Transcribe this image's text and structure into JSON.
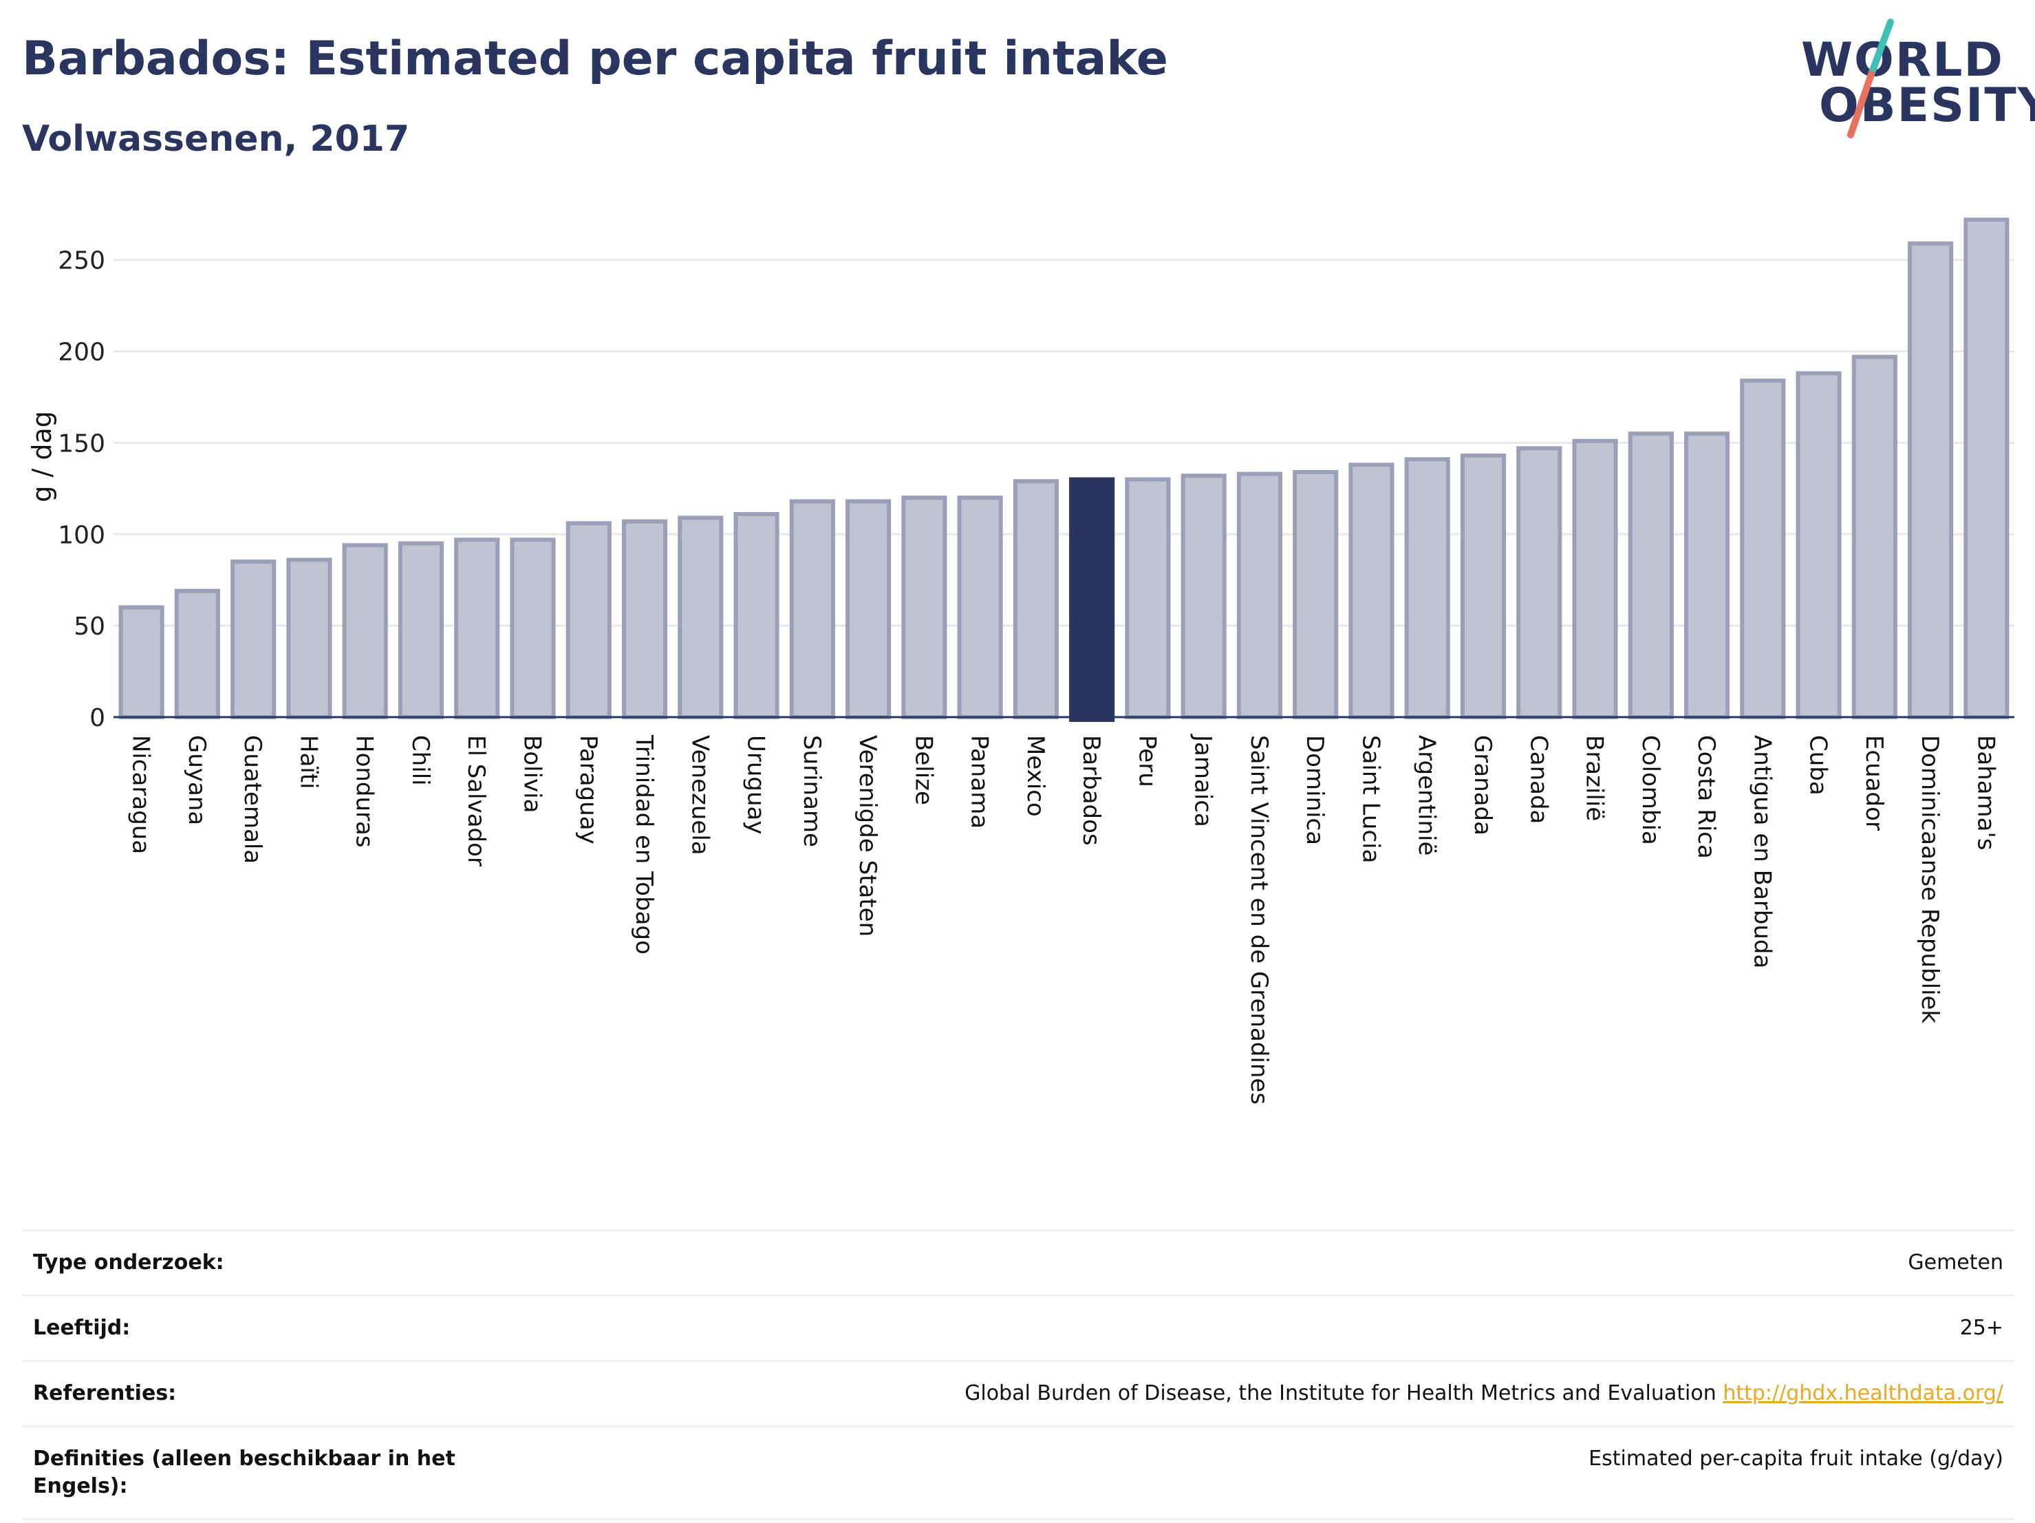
{
  "header": {
    "title": "Barbados: Estimated per capita fruit intake",
    "subtitle": "Volwassenen, 2017"
  },
  "logo": {
    "line1": "WORLD",
    "line2": "OBESITY"
  },
  "chart_data": {
    "type": "bar",
    "ylabel": "g / dag",
    "ylim": [
      0,
      280
    ],
    "yticks": [
      0,
      50,
      100,
      150,
      200,
      250
    ],
    "grid": true,
    "highlight": "Barbados",
    "colors": {
      "bar": "#c0c4d2",
      "bar_edge": "#9aa0b8",
      "highlight": "#2a3560",
      "grid": "#e6e8ee",
      "axis": "#2a3560"
    },
    "categories": [
      "Nicaragua",
      "Guyana",
      "Guatemala",
      "Haïti",
      "Honduras",
      "Chili",
      "El Salvador",
      "Bolivia",
      "Paraguay",
      "Trinidad en Tobago",
      "Venezuela",
      "Uruguay",
      "Suriname",
      "Verenigde Staten",
      "Belize",
      "Panama",
      "Mexico",
      "Barbados",
      "Peru",
      "Jamaica",
      "Saint Vincent en de Grenadines",
      "Dominica",
      "Saint Lucia",
      "Argentinië",
      "Granada",
      "Canada",
      "Brazilië",
      "Colombia",
      "Costa Rica",
      "Antigua en Barbuda",
      "Cuba",
      "Ecuador",
      "Dominicaanse Republiek",
      "Bahama's"
    ],
    "values": [
      60,
      69,
      85,
      86,
      94,
      95,
      97,
      97,
      106,
      107,
      109,
      111,
      118,
      118,
      120,
      120,
      129,
      130,
      130,
      132,
      133,
      134,
      138,
      141,
      143,
      147,
      151,
      155,
      155,
      184,
      188,
      197,
      259,
      272
    ]
  },
  "info": [
    {
      "key": "Type onderzoek:",
      "value": "Gemeten"
    },
    {
      "key": "Leeftijd:",
      "value": "25+"
    },
    {
      "key": "Referenties:",
      "value": "Global Burden of Disease, the Institute for Health Metrics and Evaluation",
      "link": "http://ghdx.healthdata.org/"
    },
    {
      "key": "Definities (alleen beschikbaar in het Engels):",
      "value": "Estimated per-capita fruit intake (g/day)"
    }
  ]
}
